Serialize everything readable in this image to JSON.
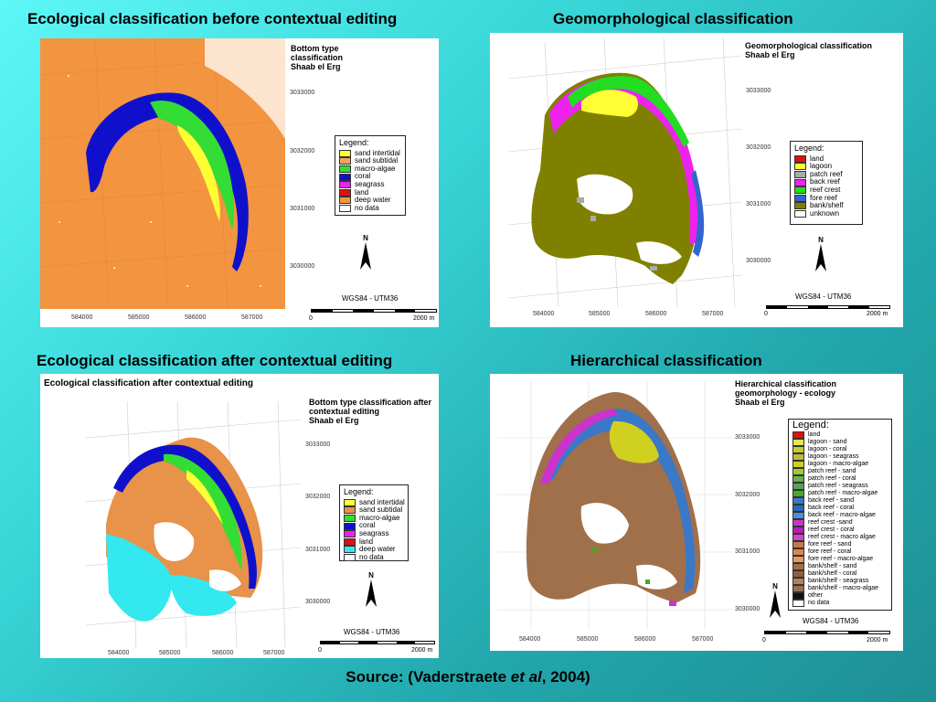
{
  "slide": {
    "titles": [
      "Ecological classification before contextual editing",
      "Geomorphological classification",
      "Ecological classification after contextual editing",
      "Hierarchical classification"
    ],
    "source_prefix": "Source: (Vaderstraete ",
    "source_italic": "et al",
    "source_suffix": ", 2004)"
  },
  "panels": [
    {
      "map_title": [
        "Bottom type",
        "classification",
        "Shaab el Erg"
      ],
      "legend_title": "Legend:",
      "legend": [
        {
          "label": "sand intertidal",
          "color": "#ffff33"
        },
        {
          "label": "sand subtidal",
          "color": "#f4a460"
        },
        {
          "label": "macro-algae",
          "color": "#33dd33"
        },
        {
          "label": "coral",
          "color": "#1010cc"
        },
        {
          "label": "seagrass",
          "color": "#ee22ee"
        },
        {
          "label": "land",
          "color": "#dd1111"
        },
        {
          "label": "deep water",
          "color": "#f19a3c"
        },
        {
          "label": "no data",
          "color": "#ffffff"
        }
      ],
      "y_ticks": [
        "3033000",
        "3032000",
        "3031000",
        "3030000"
      ],
      "x_ticks": [
        "584000",
        "585000",
        "586000",
        "587000"
      ],
      "north": "N",
      "projection": "WGS84 - UTM36",
      "scale_start": "0",
      "scale_end": "2000 m"
    },
    {
      "map_title": [
        "Geomorphological classification",
        "Shaab el Erg"
      ],
      "legend_title": "Legend:",
      "legend": [
        {
          "label": "land",
          "color": "#dd1111"
        },
        {
          "label": "lagoon",
          "color": "#ffff33"
        },
        {
          "label": "patch reef",
          "color": "#aaaaaa"
        },
        {
          "label": "back reef",
          "color": "#ee22ee"
        },
        {
          "label": "reef crest",
          "color": "#22dd22"
        },
        {
          "label": "fore reef",
          "color": "#3366cc"
        },
        {
          "label": "bank/shelf",
          "color": "#808000"
        },
        {
          "label": "unknown",
          "color": "#ffffff"
        }
      ],
      "y_ticks": [
        "3033000",
        "3032000",
        "3031000",
        "3030000"
      ],
      "x_ticks": [
        "584000",
        "585000",
        "586000",
        "587000"
      ],
      "north": "N",
      "projection": "WGS84 - UTM36",
      "scale_start": "0",
      "scale_end": "2000 m"
    },
    {
      "header": "Ecological classification after contextual editing",
      "map_title": [
        "Bottom type classification after",
        "contextual editing",
        "Shaab el Erg"
      ],
      "legend_title": "Legend:",
      "legend": [
        {
          "label": "sand intertidal",
          "color": "#ffff33"
        },
        {
          "label": "sand subtidal",
          "color": "#e8924a"
        },
        {
          "label": "macro-algae",
          "color": "#33dd33"
        },
        {
          "label": "coral",
          "color": "#1010cc"
        },
        {
          "label": "seagrass",
          "color": "#ee22ee"
        },
        {
          "label": "land",
          "color": "#dd1111"
        },
        {
          "label": "deep water",
          "color": "#33e8ee"
        },
        {
          "label": "no data",
          "color": "#ffffff"
        }
      ],
      "y_ticks": [
        "3033000",
        "3032000",
        "3031000",
        "3030000"
      ],
      "x_ticks": [
        "584000",
        "585000",
        "586000",
        "587000"
      ],
      "north": "N",
      "projection": "WGS84 - UTM36",
      "scale_start": "0",
      "scale_end": "2000 m"
    },
    {
      "map_title": [
        "Hierarchical classification",
        "geomorphology - ecology",
        "Shaab el Erg"
      ],
      "legend_title": "Legend:",
      "legend": [
        {
          "label": "land",
          "color": "#dd1111"
        },
        {
          "label": "lagoon - sand",
          "color": "#e6e64a"
        },
        {
          "label": "lagoon - coral",
          "color": "#c8c83a"
        },
        {
          "label": "lagoon - seagrass",
          "color": "#b8c040"
        },
        {
          "label": "lagoon - macro-algae",
          "color": "#d0d020"
        },
        {
          "label": "patch reef - sand",
          "color": "#9acd32"
        },
        {
          "label": "patch reef - coral",
          "color": "#6ab04c"
        },
        {
          "label": "patch reef - seagrass",
          "color": "#5aa05a"
        },
        {
          "label": "patch reef - macro-algae",
          "color": "#44aa22"
        },
        {
          "label": "back reef - sand",
          "color": "#3a78c8"
        },
        {
          "label": "back reef - coral",
          "color": "#2a68b8"
        },
        {
          "label": "back reef - macro-algae",
          "color": "#4a90d8"
        },
        {
          "label": "reef crest -sand",
          "color": "#cc33cc"
        },
        {
          "label": "reef crest - coral",
          "color": "#b022b0"
        },
        {
          "label": "reef crest - macro algae",
          "color": "#d044d0"
        },
        {
          "label": "fore reef - sand",
          "color": "#c87840"
        },
        {
          "label": "fore reef - coral",
          "color": "#d88850"
        },
        {
          "label": "fore reef - macro-algae",
          "color": "#e89860"
        },
        {
          "label": "bank/shelf - sand",
          "color": "#a0704a"
        },
        {
          "label": "bank/shelf - coral",
          "color": "#906040"
        },
        {
          "label": "bank/shelf - seagrass",
          "color": "#b08060"
        },
        {
          "label": "bank/shelf - macro-algae",
          "color": "#987050"
        },
        {
          "label": "other",
          "color": "#111111"
        },
        {
          "label": "no data",
          "color": "#ffffff"
        }
      ],
      "y_ticks": [
        "3033000",
        "3032000",
        "3031000",
        "3030000"
      ],
      "x_ticks": [
        "584000",
        "585000",
        "586000",
        "587000"
      ],
      "north": "N",
      "projection": "WGS84 - UTM36",
      "scale_start": "0",
      "scale_end": "2000 m"
    }
  ]
}
